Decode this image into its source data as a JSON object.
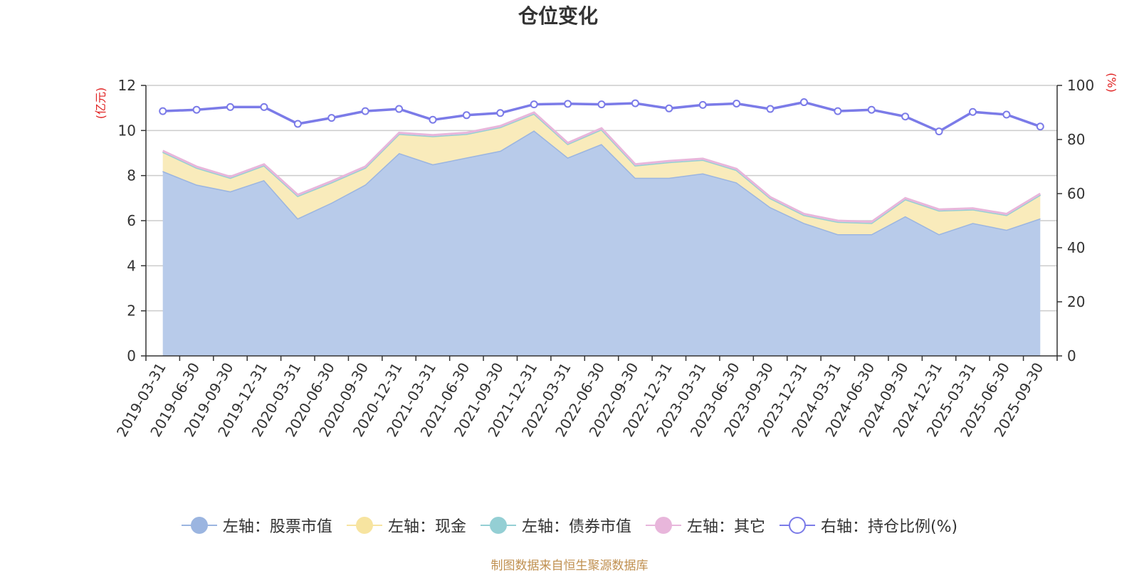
{
  "chart_data": {
    "type": "area",
    "title": "仓位变化",
    "left_axis": {
      "unit_label": "(亿元)",
      "ylim": [
        0,
        12
      ],
      "ticks": [
        0,
        2,
        4,
        6,
        8,
        10,
        12
      ]
    },
    "right_axis": {
      "unit_label": "(%)",
      "ylim": [
        0,
        100
      ],
      "ticks": [
        0,
        20,
        40,
        60,
        80,
        100
      ]
    },
    "grid": true,
    "legend_position": "bottom",
    "categories": [
      "2019-03-31",
      "2019-06-30",
      "2019-09-30",
      "2019-12-31",
      "2020-03-31",
      "2020-06-30",
      "2020-09-30",
      "2020-12-31",
      "2021-03-31",
      "2021-06-30",
      "2021-09-30",
      "2021-12-31",
      "2022-03-31",
      "2022-06-30",
      "2022-09-30",
      "2022-12-31",
      "2023-03-31",
      "2023-06-30",
      "2023-09-30",
      "2023-12-31",
      "2024-03-31",
      "2024-06-30",
      "2024-09-30",
      "2024-12-31",
      "2025-03-31",
      "2025-06-30",
      "2025-09-30"
    ],
    "series": [
      {
        "name": "左轴：股票市值",
        "axis": "left",
        "stack": "left",
        "color": "#9bb5e0",
        "fill": "#b8cbea",
        "values": [
          8.2,
          7.6,
          7.3,
          7.8,
          6.1,
          6.8,
          7.6,
          9.0,
          8.5,
          8.8,
          9.1,
          10.0,
          8.8,
          9.4,
          7.9,
          7.9,
          8.1,
          7.7,
          6.6,
          5.9,
          5.4,
          5.4,
          6.2,
          5.4,
          5.9,
          5.6,
          6.1
        ]
      },
      {
        "name": "左轴：现金",
        "axis": "left",
        "stack": "left",
        "color": "#f7e4a0",
        "fill": "#f9ebbb",
        "values": [
          0.85,
          0.75,
          0.6,
          0.65,
          1.0,
          0.9,
          0.75,
          0.85,
          1.25,
          1.05,
          1.05,
          0.75,
          0.6,
          0.65,
          0.55,
          0.7,
          0.6,
          0.55,
          0.4,
          0.35,
          0.55,
          0.5,
          0.75,
          1.05,
          0.6,
          0.65,
          1.05
        ]
      },
      {
        "name": "左轴：债券市值",
        "axis": "left",
        "stack": "left",
        "color": "#94cfd4",
        "fill": "#bfe3e6",
        "values": [
          0,
          0,
          0,
          0,
          0,
          0,
          0,
          0,
          0,
          0,
          0,
          0,
          0,
          0,
          0,
          0,
          0,
          0,
          0,
          0,
          0,
          0,
          0,
          0,
          0,
          0,
          0
        ]
      },
      {
        "name": "左轴：其它",
        "axis": "left",
        "stack": "left",
        "color": "#e8b6db",
        "fill": "#f2d4ea",
        "values": [
          0.05,
          0.05,
          0.05,
          0.05,
          0.05,
          0.05,
          0.05,
          0.05,
          0.05,
          0.05,
          0.05,
          0.05,
          0.05,
          0.05,
          0.05,
          0.05,
          0.05,
          0.05,
          0.05,
          0.05,
          0.05,
          0.05,
          0.05,
          0.05,
          0.05,
          0.05,
          0.05
        ]
      },
      {
        "name": "右轴：持仓比例(%)",
        "axis": "right",
        "color": "#7b7be8",
        "values": [
          90.5,
          91,
          92,
          92,
          85.8,
          88,
          90.5,
          91.3,
          87.3,
          89,
          89.8,
          93,
          93.2,
          93,
          93.4,
          91.5,
          92.8,
          93.3,
          91.3,
          93.8,
          90.5,
          91,
          88.5,
          83,
          90.2,
          89.2,
          84.8
        ]
      }
    ]
  },
  "footer": {
    "source": "制图数据来自恒生聚源数据库"
  }
}
